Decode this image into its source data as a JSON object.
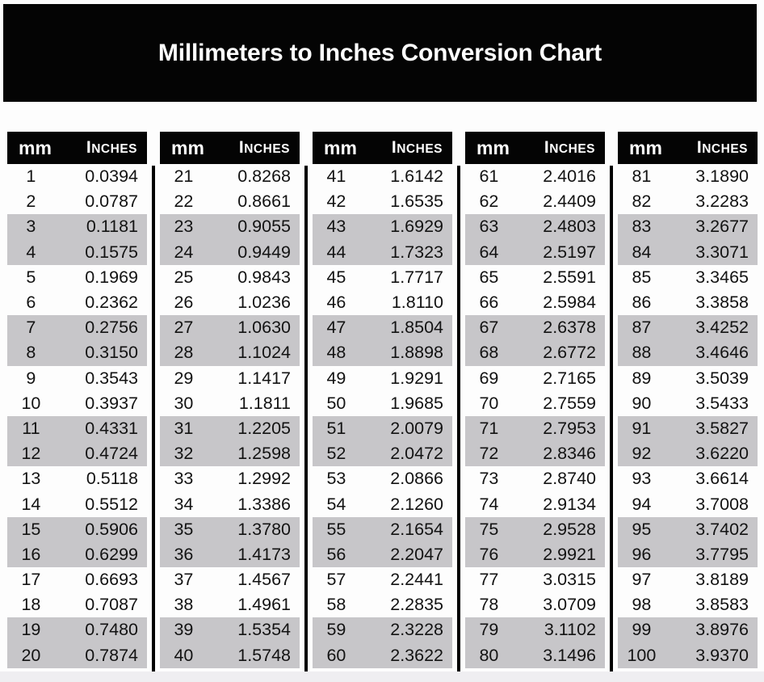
{
  "title": "Millimeters to Inches Conversion Chart",
  "header": {
    "mm_label": "mm",
    "inches_label": "Inches"
  },
  "colors": {
    "banner_bg": "#040404",
    "table_header_bg": "#040404",
    "band_gray": "#c7c6c9",
    "divider_black": "#000000",
    "bottom_strip": "#efeef1",
    "text_dark": "#131313",
    "text_white": "#ffffff"
  },
  "chart_data": {
    "type": "table",
    "title": "Millimeters to Inches Conversion Chart",
    "column_headers": [
      "mm",
      "Inches"
    ],
    "layout": "5 side-by-side sub-tables of 20 rows, pairs of rows alternate white/gray shading starting with white, black vertical divider lines between sub-tables",
    "tables": [
      {
        "mm_range": "1-20",
        "rows": [
          [
            1,
            "0.0394"
          ],
          [
            2,
            "0.0787"
          ],
          [
            3,
            "0.1181"
          ],
          [
            4,
            "0.1575"
          ],
          [
            5,
            "0.1969"
          ],
          [
            6,
            "0.2362"
          ],
          [
            7,
            "0.2756"
          ],
          [
            8,
            "0.3150"
          ],
          [
            9,
            "0.3543"
          ],
          [
            10,
            "0.3937"
          ],
          [
            11,
            "0.4331"
          ],
          [
            12,
            "0.4724"
          ],
          [
            13,
            "0.5118"
          ],
          [
            14,
            "0.5512"
          ],
          [
            15,
            "0.5906"
          ],
          [
            16,
            "0.6299"
          ],
          [
            17,
            "0.6693"
          ],
          [
            18,
            "0.7087"
          ],
          [
            19,
            "0.7480"
          ],
          [
            20,
            "0.7874"
          ]
        ]
      },
      {
        "mm_range": "21-40",
        "rows": [
          [
            21,
            "0.8268"
          ],
          [
            22,
            "0.8661"
          ],
          [
            23,
            "0.9055"
          ],
          [
            24,
            "0.9449"
          ],
          [
            25,
            "0.9843"
          ],
          [
            26,
            "1.0236"
          ],
          [
            27,
            "1.0630"
          ],
          [
            28,
            "1.1024"
          ],
          [
            29,
            "1.1417"
          ],
          [
            30,
            "1.1811"
          ],
          [
            31,
            "1.2205"
          ],
          [
            32,
            "1.2598"
          ],
          [
            33,
            "1.2992"
          ],
          [
            34,
            "1.3386"
          ],
          [
            35,
            "1.3780"
          ],
          [
            36,
            "1.4173"
          ],
          [
            37,
            "1.4567"
          ],
          [
            38,
            "1.4961"
          ],
          [
            39,
            "1.5354"
          ],
          [
            40,
            "1.5748"
          ]
        ]
      },
      {
        "mm_range": "41-60",
        "rows": [
          [
            41,
            "1.6142"
          ],
          [
            42,
            "1.6535"
          ],
          [
            43,
            "1.6929"
          ],
          [
            44,
            "1.7323"
          ],
          [
            45,
            "1.7717"
          ],
          [
            46,
            "1.8110"
          ],
          [
            47,
            "1.8504"
          ],
          [
            48,
            "1.8898"
          ],
          [
            49,
            "1.9291"
          ],
          [
            50,
            "1.9685"
          ],
          [
            51,
            "2.0079"
          ],
          [
            52,
            "2.0472"
          ],
          [
            53,
            "2.0866"
          ],
          [
            54,
            "2.1260"
          ],
          [
            55,
            "2.1654"
          ],
          [
            56,
            "2.2047"
          ],
          [
            57,
            "2.2441"
          ],
          [
            58,
            "2.2835"
          ],
          [
            59,
            "2.3228"
          ],
          [
            60,
            "2.3622"
          ]
        ]
      },
      {
        "mm_range": "61-80",
        "rows": [
          [
            61,
            "2.4016"
          ],
          [
            62,
            "2.4409"
          ],
          [
            63,
            "2.4803"
          ],
          [
            64,
            "2.5197"
          ],
          [
            65,
            "2.5591"
          ],
          [
            66,
            "2.5984"
          ],
          [
            67,
            "2.6378"
          ],
          [
            68,
            "2.6772"
          ],
          [
            69,
            "2.7165"
          ],
          [
            70,
            "2.7559"
          ],
          [
            71,
            "2.7953"
          ],
          [
            72,
            "2.8346"
          ],
          [
            73,
            "2.8740"
          ],
          [
            74,
            "2.9134"
          ],
          [
            75,
            "2.9528"
          ],
          [
            76,
            "2.9921"
          ],
          [
            77,
            "3.0315"
          ],
          [
            78,
            "3.0709"
          ],
          [
            79,
            "3.1102"
          ],
          [
            80,
            "3.1496"
          ]
        ]
      },
      {
        "mm_range": "81-100",
        "rows": [
          [
            81,
            "3.1890"
          ],
          [
            82,
            "3.2283"
          ],
          [
            83,
            "3.2677"
          ],
          [
            84,
            "3.3071"
          ],
          [
            85,
            "3.3465"
          ],
          [
            86,
            "3.3858"
          ],
          [
            87,
            "3.4252"
          ],
          [
            88,
            "3.4646"
          ],
          [
            89,
            "3.5039"
          ],
          [
            90,
            "3.5433"
          ],
          [
            91,
            "3.5827"
          ],
          [
            92,
            "3.6220"
          ],
          [
            93,
            "3.6614"
          ],
          [
            94,
            "3.7008"
          ],
          [
            95,
            "3.7402"
          ],
          [
            96,
            "3.7795"
          ],
          [
            97,
            "3.8189"
          ],
          [
            98,
            "3.8583"
          ],
          [
            99,
            "3.8976"
          ],
          [
            100,
            "3.9370"
          ]
        ]
      }
    ]
  }
}
